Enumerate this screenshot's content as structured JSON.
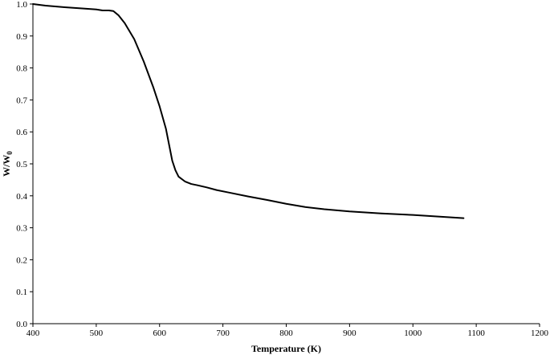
{
  "chart_data": {
    "type": "line",
    "title": "",
    "xlabel": "Temperature (K)",
    "ylabel": "W/W",
    "ylabel_subscript": "0",
    "xlim": [
      400,
      1200
    ],
    "ylim": [
      0,
      1.0
    ],
    "x_ticks": [
      400,
      500,
      600,
      700,
      800,
      900,
      1000,
      1100,
      1200
    ],
    "y_ticks": [
      "0.0",
      "0.1",
      "0.2",
      "0.3",
      "0.4",
      "0.5",
      "0.6",
      "0.7",
      "0.8",
      "0.9",
      "1.0"
    ],
    "grid": false,
    "legend": "none",
    "series": [
      {
        "color": "#000000",
        "x": [
          400,
          420,
          450,
          480,
          500,
          510,
          520,
          527,
          535,
          545,
          560,
          575,
          590,
          600,
          610,
          615,
          620,
          625,
          630,
          640,
          650,
          660,
          675,
          690,
          710,
          740,
          770,
          800,
          830,
          860,
          900,
          950,
          1000,
          1050,
          1080
        ],
        "y": [
          1.0,
          0.995,
          0.99,
          0.986,
          0.983,
          0.98,
          0.98,
          0.978,
          0.965,
          0.94,
          0.89,
          0.82,
          0.74,
          0.68,
          0.61,
          0.56,
          0.51,
          0.48,
          0.46,
          0.445,
          0.437,
          0.433,
          0.426,
          0.418,
          0.41,
          0.398,
          0.387,
          0.375,
          0.365,
          0.358,
          0.351,
          0.345,
          0.34,
          0.334,
          0.33
        ]
      }
    ]
  }
}
